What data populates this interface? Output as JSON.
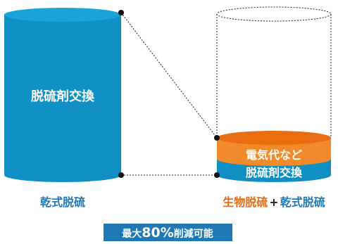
{
  "colors": {
    "blue_body": "#0f8fc4",
    "blue_top": "#1aa3d8",
    "orange_body": "#f08a2a",
    "orange_top": "#e86e10",
    "label_blue": "#1f79b7",
    "label_orange": "#ea6a12",
    "badge_bg": "#1f79b7",
    "text_white": "#ffffff",
    "dotted": "#222222"
  },
  "left_cylinder": {
    "label": "脱硫剤交換",
    "caption": "乾式脱硫"
  },
  "right_cylinder": {
    "layer_top": "電気代など",
    "layer_bottom": "脱硫剤交換",
    "caption_part1": "生物脱硫",
    "caption_plus": "+",
    "caption_part2": "乾式脱硫"
  },
  "badge": {
    "prefix": "最大",
    "number": "80%",
    "suffix": "削減可能"
  }
}
